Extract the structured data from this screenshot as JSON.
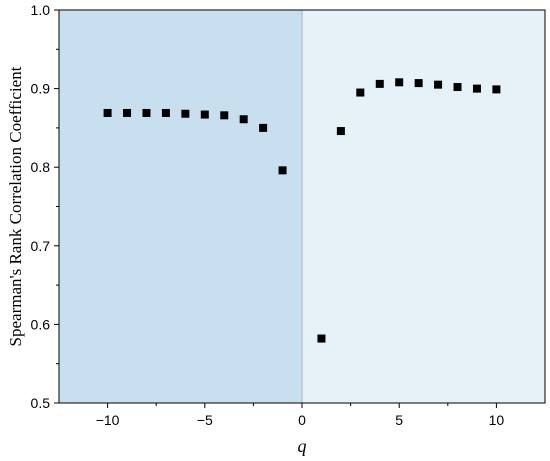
{
  "chart_data": {
    "type": "scatter",
    "xlabel": "q",
    "ylabel": "Spearman's Rank Correlation Coefficient",
    "xlim": [
      -12.5,
      12.5
    ],
    "ylim": [
      0.5,
      1.0
    ],
    "x_ticks": [
      -10,
      -5,
      0,
      5,
      10
    ],
    "x_tick_labels": [
      "−10",
      "−5",
      "0",
      "5",
      "10"
    ],
    "y_ticks": [
      0.5,
      0.6,
      0.7,
      0.8,
      0.9,
      1.0
    ],
    "y_tick_labels": [
      "0.5",
      "0.6",
      "0.7",
      "0.8",
      "0.9",
      "1.0"
    ],
    "grid": false,
    "legend": "none",
    "regions": [
      {
        "from": -12.5,
        "to": 0,
        "color": "#c7dfee"
      },
      {
        "from": 0,
        "to": 12.5,
        "color": "#e6f1f8"
      }
    ],
    "divider_at": 0,
    "divider_color": "#9fb4c2",
    "marker_color": "#000000",
    "series": [
      {
        "x": [
          -10,
          -9,
          -8,
          -7,
          -6,
          -5,
          -4,
          -3,
          -2,
          -1,
          1,
          2,
          3,
          4,
          5,
          6,
          7,
          8,
          9,
          10
        ],
        "y": [
          0.869,
          0.869,
          0.869,
          0.869,
          0.868,
          0.867,
          0.866,
          0.861,
          0.85,
          0.796,
          0.582,
          0.846,
          0.895,
          0.906,
          0.908,
          0.907,
          0.905,
          0.902,
          0.9,
          0.899
        ]
      }
    ]
  }
}
